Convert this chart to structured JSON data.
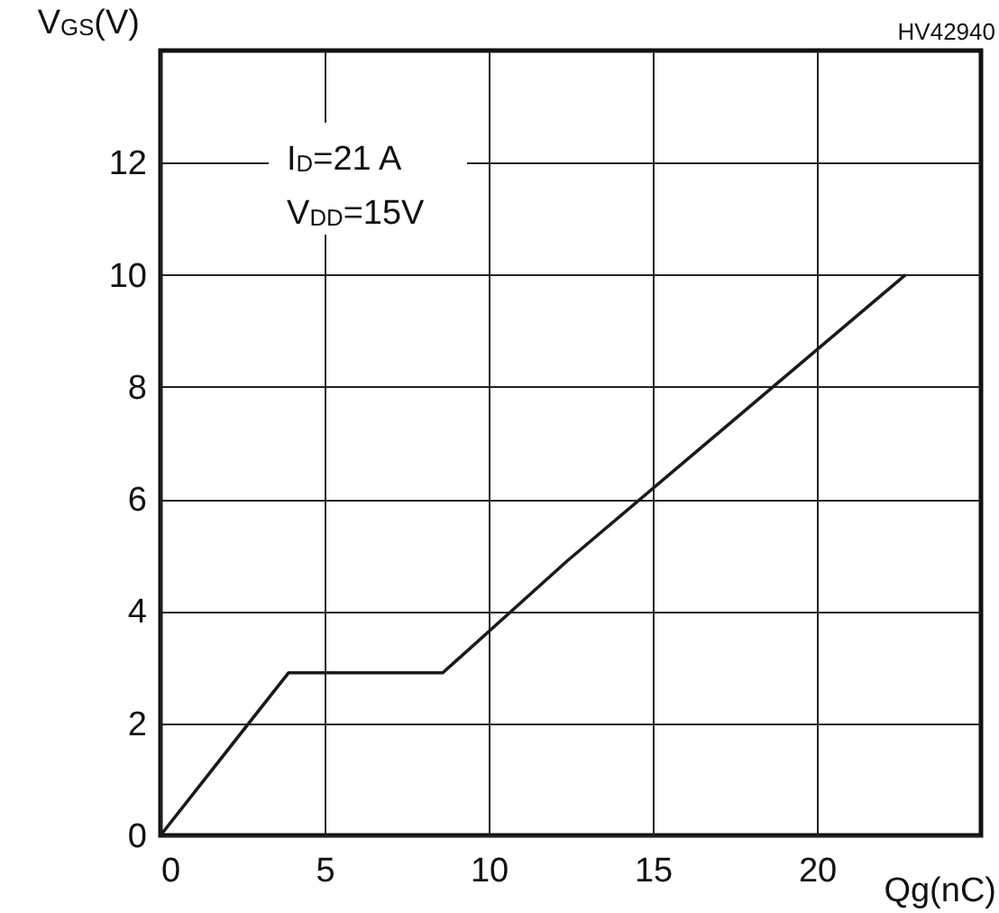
{
  "chart_data": {
    "type": "line",
    "xlabel": "Qg(nC)",
    "ylabel": "V$_{GS}$(V)",
    "annotations": [
      "I$_{D}$=21 A",
      "V$_{DD}$=15V",
      "HV42940"
    ],
    "x": [
      0,
      3.9,
      8.6,
      12.4,
      22.7
    ],
    "series": [
      {
        "color": "#1a1a1a",
        "values": [
          0,
          2.9,
          2.9,
          4.9,
          10
        ]
      }
    ],
    "xlim": [
      0,
      25
    ],
    "xticks": [
      0,
      5,
      10,
      15,
      20
    ],
    "ylim": [
      0,
      14
    ],
    "yticks": [
      0,
      2,
      4,
      6,
      8,
      10,
      12
    ],
    "grid": true,
    "marker": "none",
    "line_style": "solid"
  }
}
